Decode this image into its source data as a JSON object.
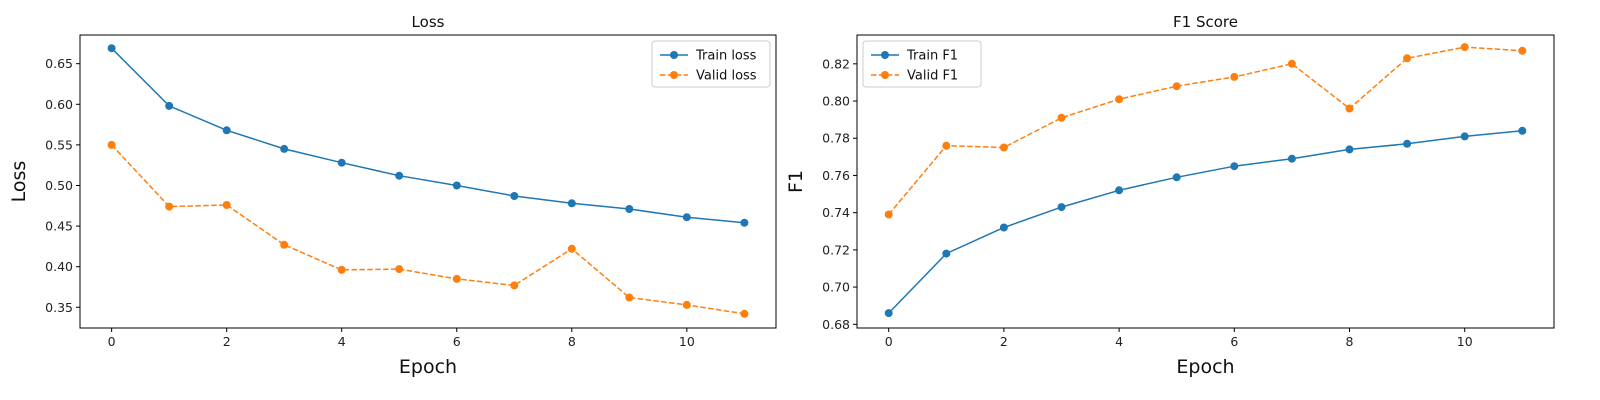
{
  "chart_data": [
    {
      "type": "line",
      "title": "Loss",
      "xlabel": "Epoch",
      "ylabel": "Loss",
      "x": [
        0,
        1,
        2,
        3,
        4,
        5,
        6,
        7,
        8,
        9,
        10,
        11
      ],
      "xticks": [
        0,
        2,
        4,
        6,
        8,
        10
      ],
      "yticks": [
        0.35,
        0.4,
        0.45,
        0.5,
        0.55,
        0.6,
        0.65
      ],
      "xlim": [
        -0.55,
        11.55
      ],
      "ylim": [
        0.3245,
        0.6853
      ],
      "grid": false,
      "legend": "top-right",
      "series": [
        {
          "name": "Train loss",
          "color": "#1f77b4",
          "style": "solid",
          "values": [
            0.669,
            0.598,
            0.568,
            0.545,
            0.528,
            0.512,
            0.5,
            0.487,
            0.478,
            0.471,
            0.461,
            0.454
          ]
        },
        {
          "name": "Valid loss",
          "color": "#ff7f0e",
          "style": "dashed",
          "values": [
            0.55,
            0.474,
            0.476,
            0.427,
            0.396,
            0.397,
            0.385,
            0.377,
            0.422,
            0.362,
            0.353,
            0.342
          ]
        }
      ]
    },
    {
      "type": "line",
      "title": "F1 Score",
      "xlabel": "Epoch",
      "ylabel": "F1",
      "x": [
        0,
        1,
        2,
        3,
        4,
        5,
        6,
        7,
        8,
        9,
        10,
        11
      ],
      "xticks": [
        0,
        2,
        4,
        6,
        8,
        10
      ],
      "yticks": [
        0.68,
        0.7,
        0.72,
        0.74,
        0.76,
        0.78,
        0.8,
        0.82
      ],
      "xlim": [
        -0.55,
        11.55
      ],
      "ylim": [
        0.678,
        0.8355
      ],
      "grid": false,
      "legend": "top-left",
      "series": [
        {
          "name": "Train F1",
          "color": "#1f77b4",
          "style": "solid",
          "values": [
            0.686,
            0.718,
            0.732,
            0.743,
            0.752,
            0.759,
            0.765,
            0.769,
            0.774,
            0.777,
            0.781,
            0.784
          ]
        },
        {
          "name": "Valid F1",
          "color": "#ff7f0e",
          "style": "dashed",
          "values": [
            0.739,
            0.776,
            0.775,
            0.791,
            0.801,
            0.808,
            0.813,
            0.82,
            0.796,
            0.823,
            0.829,
            0.827
          ]
        }
      ]
    }
  ]
}
